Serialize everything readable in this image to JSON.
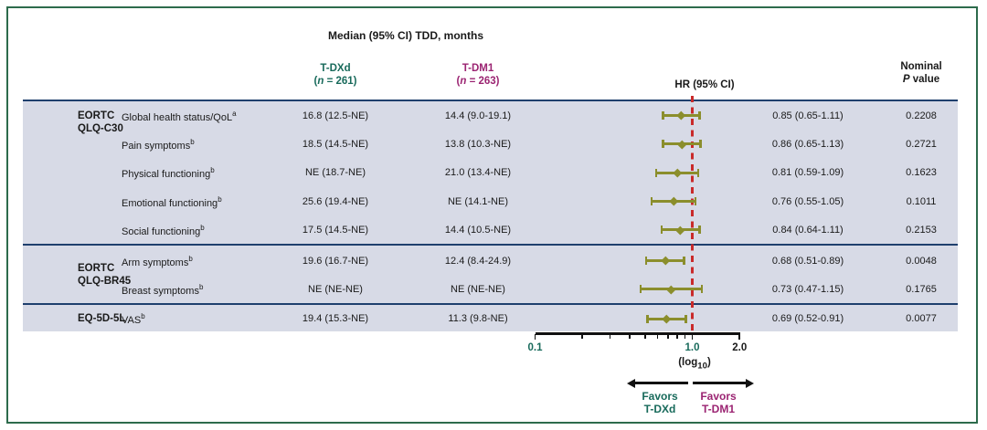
{
  "colors": {
    "tdxd_green": "#186a5b",
    "tdm1_magenta": "#9b2472",
    "marker_olive": "#8b8e2c",
    "reference_red": "#c92a2a",
    "separator_navy": "#1e3f6d",
    "band_background": "#d7dae6",
    "frame_green": "#2d6b4c"
  },
  "header": {
    "title": "Median (95% CI) TDD, months",
    "col_tdxd": {
      "name": "T-DXd",
      "n_open": "(",
      "n_var": "n",
      "n_rest": " = 261)"
    },
    "col_tdm1": {
      "name": "T-DM1",
      "n_open": "(",
      "n_var": "n",
      "n_rest": " = 263)"
    },
    "col_hr": "HR (95% CI)",
    "col_p_line1": "Nominal",
    "col_p_var": "P",
    "col_p_rest": " value"
  },
  "groups": [
    {
      "label_lines": [
        "EORTC",
        "QLQ-C30"
      ]
    },
    {
      "label_lines": [
        "EORTC",
        "QLQ-BR45"
      ]
    },
    {
      "label_lines": [
        "EQ-5D-5L"
      ]
    }
  ],
  "rows": [
    {
      "group": 0,
      "measure": "Global health status/QoL",
      "sup": "a",
      "tdxd": "16.8 (12.5-NE)",
      "tdm1": "14.4 (9.0-19.1)",
      "hr": 0.85,
      "ci_low": 0.65,
      "ci_high": 1.11,
      "hr_text": "0.85 (0.65-1.11)",
      "p_value": "0.2208"
    },
    {
      "group": 0,
      "measure": "Pain symptoms",
      "sup": "b",
      "tdxd": "18.5 (14.5-NE)",
      "tdm1": "13.8 (10.3-NE)",
      "hr": 0.86,
      "ci_low": 0.65,
      "ci_high": 1.13,
      "hr_text": "0.86 (0.65-1.13)",
      "p_value": "0.2721"
    },
    {
      "group": 0,
      "measure": "Physical functioning",
      "sup": "b",
      "tdxd": "NE (18.7-NE)",
      "tdm1": "21.0 (13.4-NE)",
      "hr": 0.81,
      "ci_low": 0.59,
      "ci_high": 1.09,
      "hr_text": "0.81 (0.59-1.09)",
      "p_value": "0.1623"
    },
    {
      "group": 0,
      "measure": "Emotional functioning",
      "sup": "b",
      "tdxd": "25.6 (19.4-NE)",
      "tdm1": "NE (14.1-NE)",
      "hr": 0.76,
      "ci_low": 0.55,
      "ci_high": 1.05,
      "hr_text": "0.76 (0.55-1.05)",
      "p_value": "0.1011"
    },
    {
      "group": 0,
      "measure": "Social functioning",
      "sup": "b",
      "tdxd": "17.5 (14.5-NE)",
      "tdm1": "14.4 (10.5-NE)",
      "hr": 0.84,
      "ci_low": 0.64,
      "ci_high": 1.11,
      "hr_text": "0.84 (0.64-1.11)",
      "p_value": "0.2153"
    },
    {
      "group": 1,
      "measure": "Arm symptoms",
      "sup": "b",
      "tdxd": "19.6 (16.7-NE)",
      "tdm1": "12.4 (8.4-24.9)",
      "hr": 0.68,
      "ci_low": 0.51,
      "ci_high": 0.89,
      "hr_text": "0.68 (0.51-0.89)",
      "p_value": "0.0048"
    },
    {
      "group": 1,
      "measure": "Breast symptoms",
      "sup": "b",
      "tdxd": "NE (NE-NE)",
      "tdm1": "NE (NE-NE)",
      "hr": 0.73,
      "ci_low": 0.47,
      "ci_high": 1.15,
      "hr_text": "0.73 (0.47-1.15)",
      "p_value": "0.1765"
    },
    {
      "group": 2,
      "measure": "VAS",
      "sup": "b",
      "tdxd": "19.4 (15.3-NE)",
      "tdm1": "11.3 (9.8-NE)",
      "hr": 0.69,
      "ci_low": 0.52,
      "ci_high": 0.91,
      "hr_text": "0.69 (0.52-0.91)",
      "p_value": "0.0077"
    }
  ],
  "axis": {
    "minor_ticks": [
      0.2,
      0.3,
      0.4,
      0.5,
      0.6,
      0.7,
      0.8,
      0.9
    ],
    "labeled_ticks": [
      {
        "text": "0.1",
        "value": 0.1,
        "color": "#186a5b"
      },
      {
        "text": "1.0",
        "value": 1.0,
        "color": "#186a5b"
      },
      {
        "text": "2.0",
        "value": 2.0,
        "color": "#1a1a1a"
      }
    ],
    "log_pre": "(log",
    "log_sub": "10",
    "log_post": ")"
  },
  "favors_left": {
    "line1": "Favors",
    "line2": "T-DXd"
  },
  "favors_right": {
    "line1": "Favors",
    "line2": "T-DM1"
  },
  "chart_data": {
    "type": "scatter",
    "subtype": "forest-plot",
    "title": "Median (95% CI) TDD, months",
    "xlabel": "(log10)",
    "x_axis": {
      "scale": "log10",
      "min": 0.1,
      "max": 2.0,
      "labeled_ticks": [
        0.1,
        1.0,
        2.0
      ],
      "minor_ticks": [
        0.2,
        0.3,
        0.4,
        0.5,
        0.6,
        0.7,
        0.8,
        0.9
      ],
      "reference_line": 1.0
    },
    "legend": {
      "favors_left_of_1": "Favors T-DXd",
      "favors_right_of_1": "Favors T-DM1"
    },
    "series": [
      {
        "name": "HR (95% CI)",
        "points": [
          {
            "category": "EORTC QLQ-C30 / Global health status/QoL",
            "hr": 0.85,
            "ci": [
              0.65,
              1.11
            ],
            "p": 0.2208
          },
          {
            "category": "EORTC QLQ-C30 / Pain symptoms",
            "hr": 0.86,
            "ci": [
              0.65,
              1.13
            ],
            "p": 0.2721
          },
          {
            "category": "EORTC QLQ-C30 / Physical functioning",
            "hr": 0.81,
            "ci": [
              0.59,
              1.09
            ],
            "p": 0.1623
          },
          {
            "category": "EORTC QLQ-C30 / Emotional functioning",
            "hr": 0.76,
            "ci": [
              0.55,
              1.05
            ],
            "p": 0.1011
          },
          {
            "category": "EORTC QLQ-C30 / Social functioning",
            "hr": 0.84,
            "ci": [
              0.64,
              1.11
            ],
            "p": 0.2153
          },
          {
            "category": "EORTC QLQ-BR45 / Arm symptoms",
            "hr": 0.68,
            "ci": [
              0.51,
              0.89
            ],
            "p": 0.0048
          },
          {
            "category": "EORTC QLQ-BR45 / Breast symptoms",
            "hr": 0.73,
            "ci": [
              0.47,
              1.15
            ],
            "p": 0.1765
          },
          {
            "category": "EQ-5D-5L / VAS",
            "hr": 0.69,
            "ci": [
              0.52,
              0.91
            ],
            "p": 0.0077
          }
        ]
      }
    ]
  }
}
